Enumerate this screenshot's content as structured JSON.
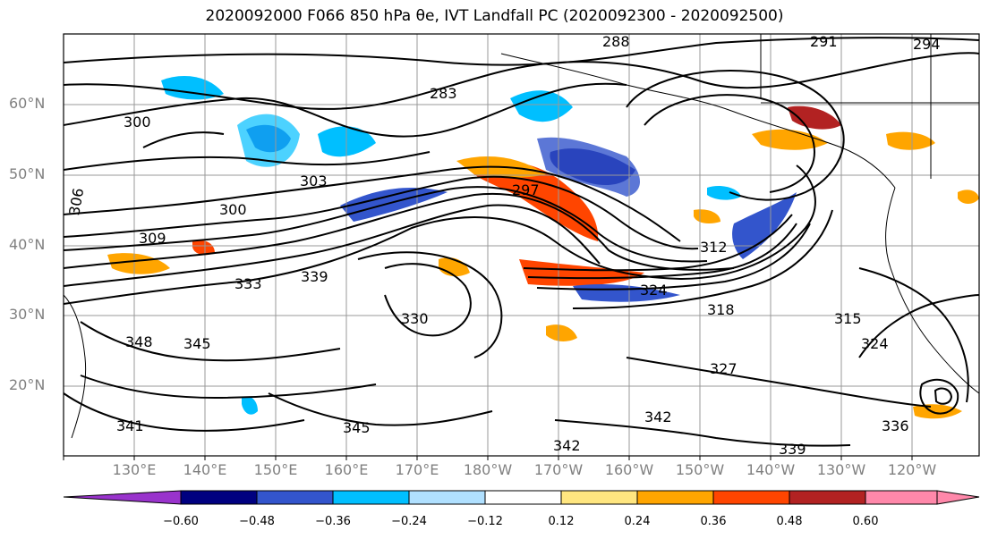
{
  "title": "2020092000 F066 850 hPa θe, IVT Landfall PC (2020092300 - 2020092500)",
  "lat_labels": [
    "60°N",
    "50°N",
    "40°N",
    "30°N",
    "20°N"
  ],
  "lon_labels": [
    "130°E",
    "140°E",
    "150°E",
    "160°E",
    "170°E",
    "180°W",
    "170°W",
    "160°W",
    "150°W",
    "140°W",
    "130°W",
    "120°W"
  ],
  "colorbar": {
    "ticks": [
      "−0.60",
      "−0.48",
      "−0.36",
      "−0.24",
      "−0.12",
      "0.12",
      "0.24",
      "0.36",
      "0.48",
      "0.60"
    ],
    "colors": [
      "#9933cc",
      "#000080",
      "#3355cc",
      "#00bfff",
      "#b0e0ff",
      "#ffffff",
      "#ffe680",
      "#ffa500",
      "#ff4500",
      "#b22222",
      "#ff88aa"
    ]
  },
  "contour_labels": [
    "288",
    "291",
    "294",
    "283",
    "300",
    "306",
    "303",
    "297",
    "300",
    "309",
    "312",
    "333",
    "339",
    "330",
    "324",
    "318",
    "315",
    "324",
    "348",
    "345",
    "327",
    "345",
    "342",
    "342",
    "336",
    "339",
    "341"
  ]
}
